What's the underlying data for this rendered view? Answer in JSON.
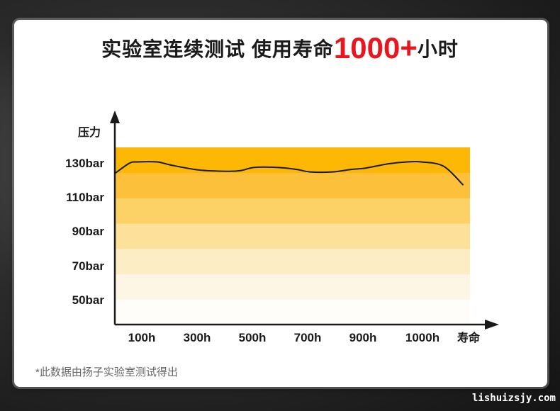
{
  "header": {
    "title_main": "实验室连续测试 使用寿命",
    "title_highlight": "1000+",
    "title_tail": "小时"
  },
  "chart_data": {
    "type": "line",
    "title": "实验室连续测试 使用寿命1000+小时",
    "xlabel": "寿命",
    "ylabel": "压力",
    "x_ticks": [
      "100h",
      "300h",
      "500h",
      "700h",
      "900h",
      "1000h"
    ],
    "y_ticks": [
      "50bar",
      "70bar",
      "90bar",
      "110bar",
      "130bar"
    ],
    "y_tick_values": [
      50,
      70,
      90,
      110,
      130
    ],
    "ylim": [
      42,
      140
    ],
    "band_colors": [
      "#fffdfa",
      "#fdf6e4",
      "#fdedc4",
      "#fde19a",
      "#fcd165",
      "#fdc03b",
      "#fcb804"
    ],
    "curve_color": "#1a1a1a",
    "series": [
      {
        "x": [
          0,
          50,
          80,
          150,
          200,
          300,
          400,
          450,
          500,
          580,
          650,
          700,
          780,
          850,
          900,
          980,
          1050,
          1100,
          1180,
          1250
        ],
        "values": [
          113.3,
          117.9,
          118.5,
          118.5,
          117.0,
          114.7,
          114.1,
          114.4,
          115.9,
          115.9,
          115.0,
          113.8,
          113.8,
          115.0,
          115.6,
          117.6,
          118.5,
          118.5,
          116.5,
          107.8
        ]
      }
    ],
    "grid": false
  },
  "footnote": "*此数据由扬子实验室测试得出",
  "watermark": "lishuizsjy.com"
}
